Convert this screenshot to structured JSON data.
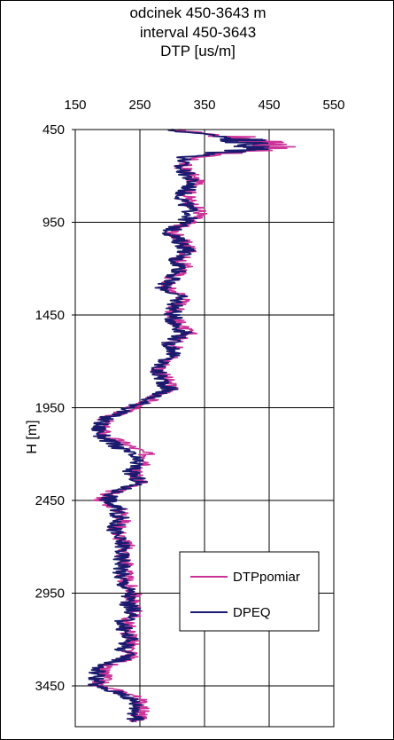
{
  "chart_data": {
    "type": "line",
    "title_lines": [
      "odcinek 450-3643 m",
      "interval 450-3643",
      "DTP [us/m]"
    ],
    "ylabel": "H [m]",
    "xlabel": "",
    "x_axis_position": "top",
    "x_ticks": [
      150,
      250,
      350,
      450,
      550
    ],
    "y_ticks": [
      450,
      950,
      1450,
      1950,
      2450,
      2950,
      3450
    ],
    "xlim": [
      150,
      550
    ],
    "ylim": [
      450,
      3643
    ],
    "y_inverted": true,
    "grid": true,
    "legend_position": "lower-right",
    "series": [
      {
        "name": "DTPpomiar",
        "color": "#cc3399",
        "depth": [
          450,
          500,
          530,
          560,
          600,
          650,
          700,
          750,
          800,
          850,
          900,
          950,
          1000,
          1050,
          1100,
          1150,
          1200,
          1250,
          1300,
          1350,
          1400,
          1450,
          1500,
          1550,
          1600,
          1650,
          1700,
          1750,
          1800,
          1850,
          1900,
          1950,
          2000,
          2050,
          2100,
          2150,
          2200,
          2250,
          2300,
          2350,
          2400,
          2450,
          2500,
          2550,
          2600,
          2650,
          2700,
          2750,
          2800,
          2850,
          2900,
          2950,
          3000,
          3050,
          3100,
          3150,
          3200,
          3250,
          3300,
          3350,
          3400,
          3450,
          3500,
          3550,
          3600,
          3643
        ],
        "dtp": [
          300,
          420,
          460,
          440,
          330,
          315,
          330,
          340,
          320,
          330,
          345,
          325,
          300,
          315,
          330,
          310,
          320,
          300,
          290,
          320,
          310,
          300,
          310,
          325,
          300,
          310,
          290,
          280,
          290,
          300,
          270,
          240,
          200,
          190,
          195,
          230,
          260,
          265,
          240,
          255,
          210,
          190,
          220,
          225,
          215,
          220,
          230,
          225,
          230,
          225,
          230,
          240,
          235,
          245,
          230,
          230,
          240,
          230,
          235,
          190,
          195,
          185,
          240,
          255,
          250,
          245
        ]
      },
      {
        "name": "DPEQ",
        "color": "#1a1a6e",
        "depth": [
          450,
          500,
          530,
          560,
          600,
          650,
          700,
          750,
          800,
          850,
          900,
          950,
          1000,
          1050,
          1100,
          1150,
          1200,
          1250,
          1300,
          1350,
          1400,
          1450,
          1500,
          1550,
          1600,
          1650,
          1700,
          1750,
          1800,
          1850,
          1900,
          1950,
          2000,
          2050,
          2100,
          2150,
          2200,
          2250,
          2300,
          2350,
          2400,
          2450,
          2500,
          2550,
          2600,
          2650,
          2700,
          2750,
          2800,
          2850,
          2900,
          2950,
          3000,
          3050,
          3100,
          3150,
          3200,
          3250,
          3300,
          3350,
          3400,
          3450,
          3500,
          3550,
          3600,
          3643
        ],
        "dtp": [
          290,
          410,
          420,
          420,
          320,
          310,
          325,
          330,
          315,
          320,
          330,
          320,
          295,
          310,
          325,
          305,
          315,
          300,
          285,
          310,
          305,
          300,
          305,
          320,
          295,
          305,
          285,
          275,
          285,
          295,
          265,
          240,
          200,
          185,
          190,
          210,
          235,
          245,
          235,
          250,
          215,
          200,
          215,
          220,
          210,
          215,
          225,
          220,
          225,
          220,
          225,
          235,
          230,
          240,
          225,
          225,
          235,
          225,
          230,
          185,
          185,
          180,
          230,
          245,
          245,
          240
        ]
      }
    ]
  }
}
